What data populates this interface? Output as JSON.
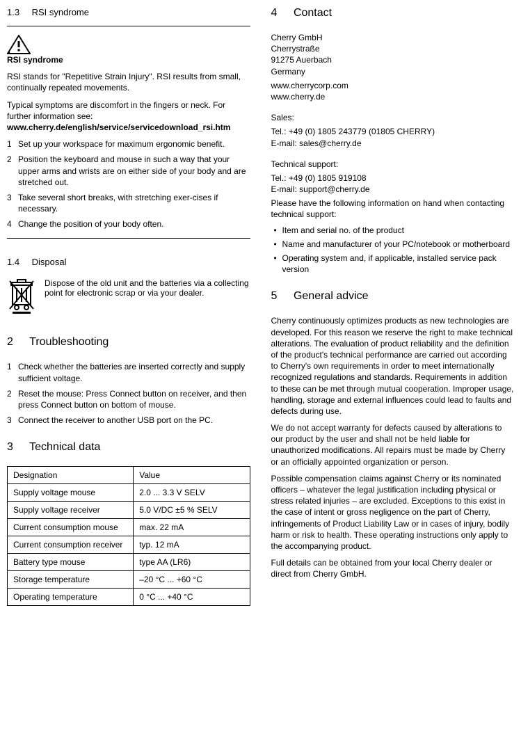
{
  "left": {
    "s13": {
      "num": "1.3",
      "title": "RSI syndrome",
      "heading": "RSI syndrome",
      "p1": "RSI stands for \"Repetitive Strain Injury\". RSI results from small, continually repeated movements.",
      "p2a": "Typical symptoms are discomfort in the fingers or neck. For further information see: ",
      "p2b": "www.cherry.de/english/service/servicedownload_rsi.htm",
      "steps": [
        "Set up your workspace for maximum ergonomic benefit.",
        "Position the keyboard and mouse in such a way that your upper arms and wrists are on either side of your body and are stretched out.",
        "Take several short breaks, with stretching exer-cises if necessary.",
        "Change the position of your body often."
      ]
    },
    "s14": {
      "num": "1.4",
      "title": "Disposal",
      "text": "Dispose of the old unit and the batteries via a collecting point for electronic scrap or via your dealer."
    },
    "s2": {
      "num": "2",
      "title": "Troubleshooting",
      "steps": [
        "Check whether the batteries are inserted correctly and supply sufficient voltage.",
        "Reset the mouse: Press Connect button on receiver, and then press Connect button on bottom of mouse.",
        "Connect the receiver to another USB port on the PC."
      ]
    },
    "s3": {
      "num": "3",
      "title": "Technical data",
      "table": {
        "type": "table",
        "columns": [
          "Designation",
          "Value"
        ],
        "col_widths": [
          "52%",
          "48%"
        ],
        "rows": [
          [
            "Supply voltage mouse",
            "2.0 ... 3.3 V SELV"
          ],
          [
            "Supply voltage receiver",
            "5.0 V/DC ±5 % SELV"
          ],
          [
            "Current consumption mouse",
            "max. 22 mA"
          ],
          [
            "Current consumption receiver",
            "typ. 12 mA"
          ],
          [
            "Battery type mouse",
            "type AA (LR6)"
          ],
          [
            "Storage temperature",
            "–20 °C ... +60 °C"
          ],
          [
            "Operating temperature",
            "0 °C ... +40 °C"
          ]
        ],
        "border_color": "#000000",
        "font_size": 12
      }
    }
  },
  "right": {
    "s4": {
      "num": "4",
      "title": "Contact",
      "addr": [
        "Cherry GmbH",
        "Cherrystraße",
        "91275 Auerbach",
        "Germany"
      ],
      "web": [
        "www.cherrycorp.com",
        "www.cherry.de"
      ],
      "sales_h": "Sales:",
      "sales": [
        "Tel.: +49 (0) 1805 243779 (01805 CHERRY)",
        "E-mail: sales@cherry.de"
      ],
      "tech_h": "Technical support:",
      "tech": [
        "Tel.: +49 (0) 1805 919108",
        "E-mail: support@cherry.de"
      ],
      "info_p": "Please have the following information on hand when contacting technical support:",
      "info_list": [
        "Item and serial no. of the product",
        "Name and manufacturer of your PC/notebook or motherboard",
        "Operating system and, if applicable, installed service pack version"
      ]
    },
    "s5": {
      "num": "5",
      "title": "General advice",
      "p1": "Cherry continuously optimizes products as new technologies are developed. For this reason we reserve the right to make technical alterations. The evaluation of product reliability and the definition of the product's technical performance are carried out according to Cherry's own requirements in order to meet internationally recognized regulations and standards. Requirements in addition to these can be met through mutual cooperation. Improper usage, handling, storage and external influences could lead to faults and defects during use.",
      "p2": "We do not accept warranty for defects caused by alterations to our product by the user and shall not be held liable for unauthorized modifications. All repairs must be made by Cherry or an officially appointed organization or person.",
      "p3": "Possible compensation claims against Cherry or its nominated officers – whatever the legal justification including physical or stress related injuries – are excluded. Exceptions to this exist in the case of intent or gross negligence on the part of Cherry, infringements of Product Liability Law or in cases of injury, bodily harm or risk to health. These operating instructions only apply to the accompanying product.",
      "p4": "Full details can be obtained from your local Cherry dealer or direct from Cherry GmbH."
    }
  },
  "colors": {
    "text": "#000000",
    "background": "#ffffff",
    "rule": "#000000"
  },
  "fonts": {
    "body_size": 12,
    "h2_size": 16,
    "h3_size": 13
  }
}
